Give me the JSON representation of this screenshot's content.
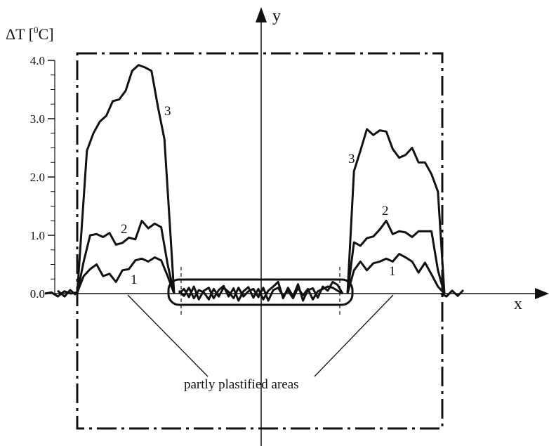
{
  "chart_data": {
    "type": "line",
    "ylabel": "ΔT [⁰C]",
    "ylabel_parts": [
      "ΔT [",
      "0",
      "C]"
    ],
    "xaxis_label": "x",
    "yaxis_label": "y",
    "ylim": [
      0.0,
      4.0
    ],
    "yticks": [
      "4.0",
      "3.0",
      "2.0",
      "1.0",
      "0.0"
    ],
    "annotation": "partly plastified areas",
    "series": [
      {
        "name": "1",
        "left": [
          [
            -2.0,
            0.0
          ],
          [
            -1.9,
            0.02
          ],
          [
            -1.8,
            -0.05
          ],
          [
            -1.7,
            0.04
          ],
          [
            -1.6,
            0.0
          ],
          [
            -1.5,
            0.02
          ],
          [
            -1.4,
            0.3
          ],
          [
            -1.3,
            0.42
          ],
          [
            -1.2,
            0.5
          ],
          [
            -1.1,
            0.3
          ],
          [
            -1.0,
            0.34
          ],
          [
            -0.9,
            0.2
          ],
          [
            -0.8,
            0.4
          ],
          [
            -0.7,
            0.42
          ],
          [
            -0.6,
            0.57
          ],
          [
            -0.5,
            0.6
          ],
          [
            -0.4,
            0.55
          ],
          [
            -0.3,
            0.62
          ],
          [
            -0.2,
            0.57
          ],
          [
            -0.1,
            0.3
          ],
          [
            0.0,
            0.0
          ]
        ],
        "right": [
          [
            0.0,
            0.0
          ],
          [
            0.1,
            0.4
          ],
          [
            0.2,
            0.55
          ],
          [
            0.3,
            0.4
          ],
          [
            0.4,
            0.52
          ],
          [
            0.5,
            0.55
          ],
          [
            0.6,
            0.6
          ],
          [
            0.7,
            0.55
          ],
          [
            0.8,
            0.68
          ],
          [
            0.9,
            0.62
          ],
          [
            1.0,
            0.55
          ],
          [
            1.1,
            0.36
          ],
          [
            1.2,
            0.53
          ],
          [
            1.3,
            0.33
          ],
          [
            1.4,
            0.12
          ],
          [
            1.5,
            0.0
          ]
        ]
      },
      {
        "name": "2",
        "left": [
          [
            -1.5,
            0.0
          ],
          [
            -1.4,
            0.55
          ],
          [
            -1.3,
            1.0
          ],
          [
            -1.2,
            1.02
          ],
          [
            -1.1,
            0.97
          ],
          [
            -1.0,
            1.04
          ],
          [
            -0.9,
            0.84
          ],
          [
            -0.8,
            0.87
          ],
          [
            -0.7,
            0.96
          ],
          [
            -0.6,
            0.93
          ],
          [
            -0.5,
            1.25
          ],
          [
            -0.4,
            1.12
          ],
          [
            -0.3,
            1.2
          ],
          [
            -0.2,
            1.14
          ],
          [
            -0.1,
            0.5
          ],
          [
            0.0,
            0.0
          ]
        ],
        "right": [
          [
            0.0,
            0.0
          ],
          [
            0.1,
            0.88
          ],
          [
            0.2,
            0.82
          ],
          [
            0.3,
            0.95
          ],
          [
            0.4,
            0.98
          ],
          [
            0.5,
            1.1
          ],
          [
            0.6,
            1.25
          ],
          [
            0.7,
            1.02
          ],
          [
            0.8,
            1.07
          ],
          [
            0.9,
            1.05
          ],
          [
            1.0,
            0.97
          ],
          [
            1.1,
            1.07
          ],
          [
            1.2,
            1.07
          ],
          [
            1.3,
            1.07
          ],
          [
            1.4,
            0.4
          ],
          [
            1.5,
            0.0
          ]
        ]
      },
      {
        "name": "3",
        "left": [
          [
            -1.5,
            0.0
          ],
          [
            -1.35,
            2.45
          ],
          [
            -1.25,
            2.75
          ],
          [
            -1.15,
            2.95
          ],
          [
            -1.05,
            3.05
          ],
          [
            -0.95,
            3.3
          ],
          [
            -0.85,
            3.33
          ],
          [
            -0.75,
            3.48
          ],
          [
            -0.65,
            3.82
          ],
          [
            -0.55,
            3.92
          ],
          [
            -0.45,
            3.88
          ],
          [
            -0.35,
            3.82
          ],
          [
            -0.25,
            3.2
          ],
          [
            -0.15,
            2.65
          ],
          [
            -0.05,
            0.9
          ],
          [
            0.0,
            0.0
          ]
        ],
        "right": [
          [
            0.0,
            0.0
          ],
          [
            0.1,
            2.1
          ],
          [
            0.2,
            2.45
          ],
          [
            0.3,
            2.82
          ],
          [
            0.4,
            2.72
          ],
          [
            0.5,
            2.8
          ],
          [
            0.6,
            2.78
          ],
          [
            0.7,
            2.48
          ],
          [
            0.8,
            2.33
          ],
          [
            0.9,
            2.38
          ],
          [
            1.0,
            2.5
          ],
          [
            1.1,
            2.25
          ],
          [
            1.2,
            2.25
          ],
          [
            1.3,
            2.05
          ],
          [
            1.4,
            1.75
          ],
          [
            1.5,
            0.0
          ]
        ]
      }
    ],
    "middle_noise": [
      0.0,
      0.08,
      -0.06,
      0.12,
      -0.1,
      0.05,
      0.1,
      -0.08,
      0.06,
      0.13,
      -0.05,
      0.09,
      -0.12,
      0.04,
      0.11,
      -0.07,
      0.08,
      -0.1,
      0.05,
      0.12,
      0.2,
      -0.08,
      0.1,
      -0.05,
      0.16,
      -0.12,
      0.06,
      0.09,
      -0.07,
      0.12,
      0.05,
      0.2,
      0.15,
      0.0
    ],
    "middle_noise_2": [
      0.05,
      -0.04,
      0.1,
      -0.08,
      0.06,
      0.02,
      -0.1,
      0.08,
      -0.05,
      0.1,
      0.03,
      -0.08,
      0.1,
      -0.05,
      0.04,
      0.08,
      -0.06,
      0.1,
      -0.12,
      0.06,
      0.1,
      -0.04,
      0.05,
      -0.08,
      0.1,
      -0.03,
      0.08,
      -0.1,
      0.04,
      0.08,
      0.12,
      0.1,
      0.05,
      0.0
    ]
  }
}
